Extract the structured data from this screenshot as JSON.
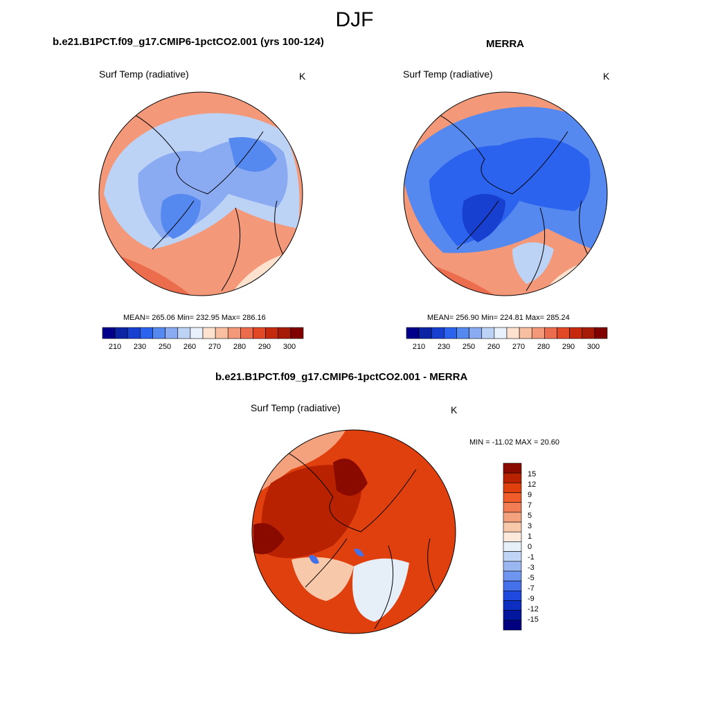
{
  "season": "DJF",
  "panels": [
    {
      "title": "b.e21.B1PCT.f09_g17.CMIP6-1pctCO2.001 (yrs 100-124)",
      "variable": "Surf Temp (radiative)",
      "units": "K",
      "stats": "MEAN= 265.06  Min= 232.95  Max= 286.16",
      "mean": 265.06,
      "min": 232.95,
      "max": 286.16
    },
    {
      "title": "MERRA",
      "variable": "Surf Temp (radiative)",
      "units": "K",
      "stats": "MEAN= 256.90  Min= 224.81  Max= 285.24",
      "mean": 256.9,
      "min": 224.81,
      "max": 285.24
    },
    {
      "title": "b.e21.B1PCT.f09_g17.CMIP6-1pctCO2.001 - MERRA",
      "variable": "Surf Temp (radiative)",
      "units": "K",
      "stats": "MIN = -11.02 MAX =  20.60",
      "min": -11.02,
      "max": 20.6
    }
  ],
  "abs_colorbar": {
    "colors": [
      "#00008b",
      "#0b24a6",
      "#1840d0",
      "#2b63ee",
      "#5589f0",
      "#8aabf2",
      "#bcd3f6",
      "#e8f1fc",
      "#fde3cf",
      "#f8bfa0",
      "#f39878",
      "#eb6d4d",
      "#e24726",
      "#c52a0f",
      "#a51b07",
      "#800000"
    ],
    "tick_labels": [
      "210",
      "230",
      "250",
      "260",
      "270",
      "280",
      "290",
      "300"
    ]
  },
  "diff_colorbar": {
    "colors_top_to_bottom": [
      "#8b0a00",
      "#b82200",
      "#e0400e",
      "#f05d2b",
      "#f27d55",
      "#f4a27e",
      "#f8c8ab",
      "#fde9dc",
      "#e6eef8",
      "#c0d4f5",
      "#9ab7f2",
      "#6e95f0",
      "#4470ea",
      "#1f49de",
      "#0c2fc2",
      "#03169e",
      "#000080"
    ],
    "tick_labels": [
      "15",
      "12",
      "9",
      "7",
      "5",
      "3",
      "1",
      "0",
      "-1",
      "-3",
      "-5",
      "-7",
      "-9",
      "-12",
      "-15"
    ]
  }
}
